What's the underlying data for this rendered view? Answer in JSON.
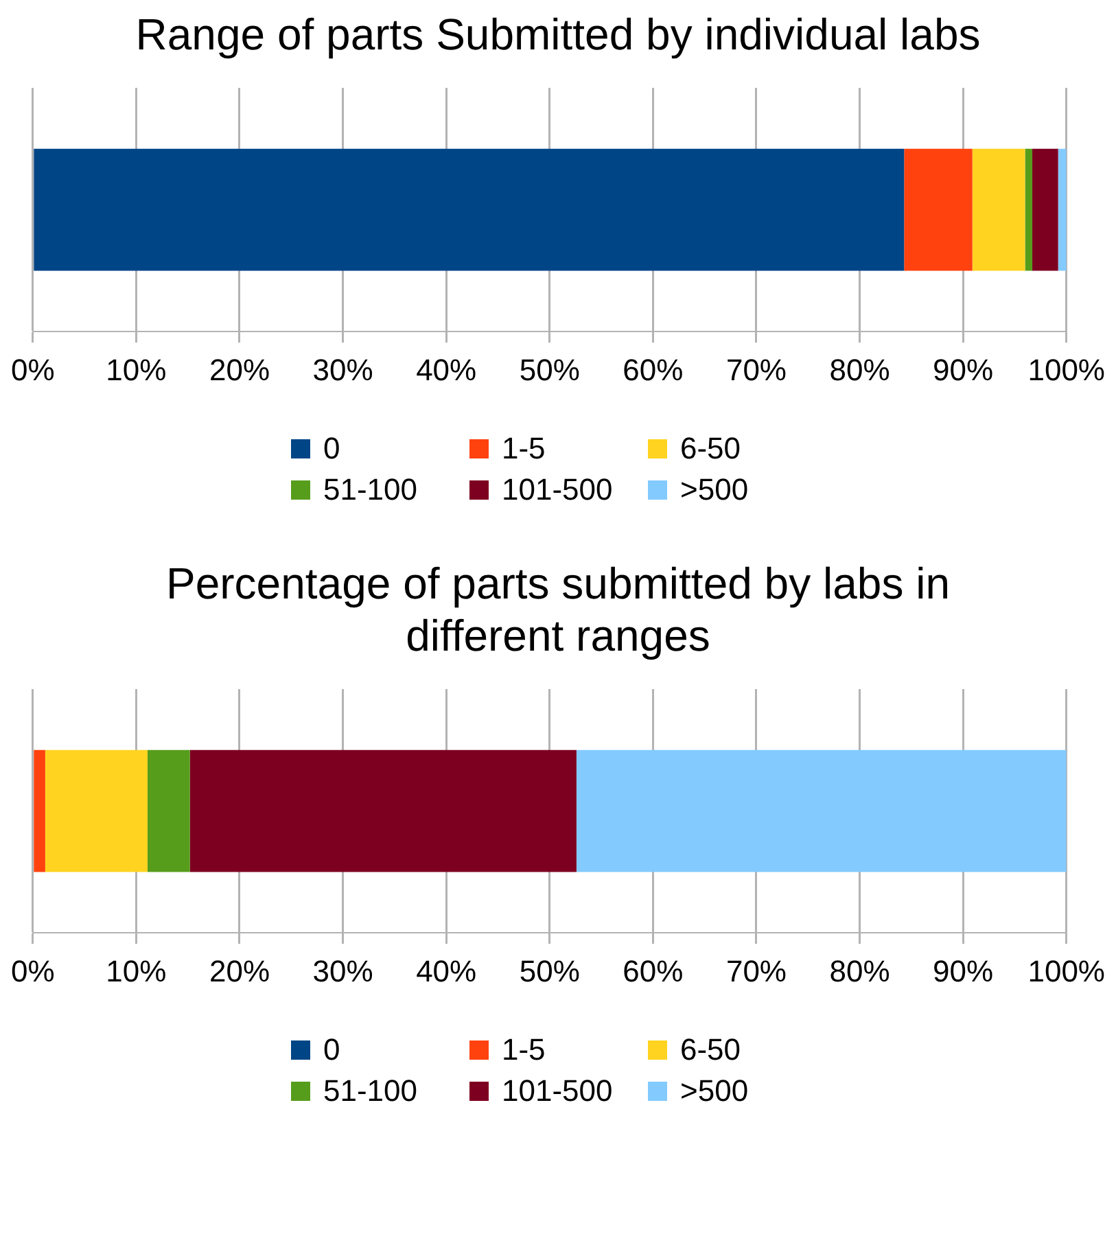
{
  "chart_data": [
    {
      "type": "bar",
      "title": "Range of parts Submitted by individual labs",
      "orientation": "horizontal",
      "stacked": true,
      "categories": [
        null
      ],
      "xlim": [
        0,
        100
      ],
      "xticks": [
        {
          "value": 0,
          "label": "0%"
        },
        {
          "value": 10,
          "label": "10%"
        },
        {
          "value": 20,
          "label": "20%"
        },
        {
          "value": 30,
          "label": "30%"
        },
        {
          "value": 40,
          "label": "40%"
        },
        {
          "value": 50,
          "label": "50%"
        },
        {
          "value": 60,
          "label": "60%"
        },
        {
          "value": 70,
          "label": "70%"
        },
        {
          "value": 80,
          "label": "80%"
        },
        {
          "value": 90,
          "label": "90%"
        },
        {
          "value": 100,
          "label": "100%"
        }
      ],
      "grid": "x",
      "legend": "bottom",
      "tick_labels": "x",
      "series": [
        {
          "name": "0",
          "color": "#004586",
          "values": [
            84.3
          ]
        },
        {
          "name": "1-5",
          "color": "#ff420e",
          "values": [
            6.6
          ]
        },
        {
          "name": "6-50",
          "color": "#ffd320",
          "values": [
            5.1
          ]
        },
        {
          "name": "51-100",
          "color": "#579d1c",
          "values": [
            0.7
          ]
        },
        {
          "name": "101-500",
          "color": "#7e0021",
          "values": [
            2.5
          ]
        },
        {
          "name": ">500",
          "color": "#83caff",
          "values": [
            0.8
          ]
        }
      ]
    },
    {
      "type": "bar",
      "title": "Percentage of parts submitted by labs in different ranges",
      "orientation": "horizontal",
      "stacked": true,
      "categories": [
        null
      ],
      "xlim": [
        0,
        100
      ],
      "xticks": [
        {
          "value": 0,
          "label": "0%"
        },
        {
          "value": 10,
          "label": "10%"
        },
        {
          "value": 20,
          "label": "20%"
        },
        {
          "value": 30,
          "label": "30%"
        },
        {
          "value": 40,
          "label": "40%"
        },
        {
          "value": 50,
          "label": "50%"
        },
        {
          "value": 60,
          "label": "60%"
        },
        {
          "value": 70,
          "label": "70%"
        },
        {
          "value": 80,
          "label": "80%"
        },
        {
          "value": 90,
          "label": "90%"
        },
        {
          "value": 100,
          "label": "100%"
        }
      ],
      "grid": "x",
      "legend": "bottom",
      "tick_labels": "x",
      "series": [
        {
          "name": "0",
          "color": "#004586",
          "values": [
            0
          ]
        },
        {
          "name": "1-5",
          "color": "#ff420e",
          "values": [
            1.2
          ]
        },
        {
          "name": "6-50",
          "color": "#ffd320",
          "values": [
            9.9
          ]
        },
        {
          "name": "51-100",
          "color": "#579d1c",
          "values": [
            4.1
          ]
        },
        {
          "name": "101-500",
          "color": "#7e0021",
          "values": [
            37.4
          ]
        },
        {
          "name": ">500",
          "color": "#83caff",
          "values": [
            47.4
          ]
        }
      ]
    }
  ]
}
